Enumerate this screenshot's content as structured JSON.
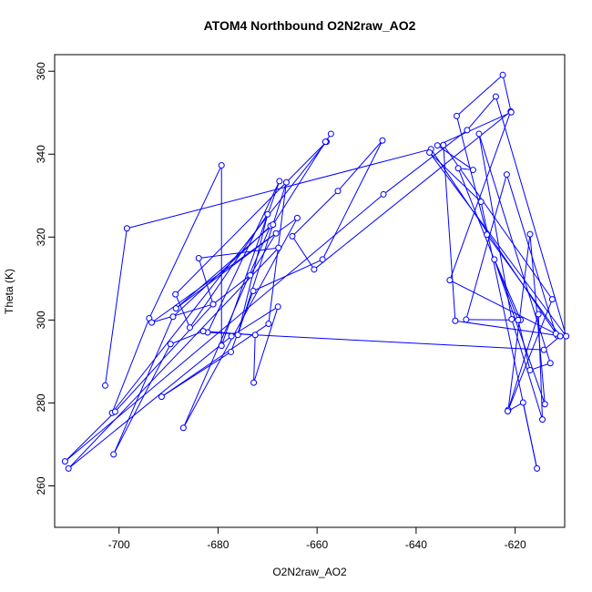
{
  "chart_data": {
    "type": "scatter",
    "mode": "lines+points",
    "title": "ATOM4 Northbound O2N2raw_AO2",
    "xlabel": "O2N2raw_AO2",
    "ylabel": "Theta (K)",
    "xlim": [
      -713,
      -610
    ],
    "ylim": [
      250,
      364
    ],
    "x_ticks": [
      -700,
      -680,
      -660,
      -640,
      -620
    ],
    "y_ticks": [
      260,
      280,
      300,
      320,
      340,
      360
    ],
    "color": "#0000ff",
    "grid": false,
    "series": [
      {
        "points": [
          [
            -702.8,
            284.2
          ],
          [
            -698.4,
            322.1
          ],
          [
            -637.0,
            341.2
          ],
          [
            -611.5,
            296.3
          ],
          [
            -632.1,
            299.8
          ],
          [
            -634.5,
            342.2
          ],
          [
            -612.5,
            305.0
          ],
          [
            -621.4,
            278.3
          ],
          [
            -617.0,
            320.7
          ],
          [
            -614.0,
            279.7
          ],
          [
            -624.2,
            314.6
          ],
          [
            -618.9,
            300.0
          ],
          [
            -629.9,
            300.1
          ],
          [
            -621.7,
            335.1
          ],
          [
            -611.8,
            296.7
          ],
          [
            -633.2,
            309.6
          ],
          [
            -620.9,
            350.3
          ],
          [
            -660.6,
            312.2
          ],
          [
            -665.0,
            320.2
          ],
          [
            -655.8,
            331.1
          ],
          [
            -646.8,
            343.3
          ],
          [
            -658.9,
            314.6
          ],
          [
            -672.9,
            307.0
          ],
          [
            -677.4,
            292.3
          ],
          [
            -691.4,
            281.5
          ],
          [
            -669.8,
            299.1
          ],
          [
            -666.2,
            333.2
          ],
          [
            -676.0,
            296.4
          ],
          [
            -670.0,
            325.5
          ],
          [
            -685.7,
            298.2
          ],
          [
            -688.6,
            306.2
          ],
          [
            -658.1,
            343.0
          ],
          [
            -701.4,
            277.6
          ],
          [
            -693.9,
            300.4
          ],
          [
            -679.3,
            337.3
          ],
          [
            -679.3,
            293.8
          ],
          [
            -667.6,
            333.5
          ],
          [
            -682.1,
            297.0
          ],
          [
            -614.2,
            292.8
          ],
          [
            -610.9,
            296.1
          ],
          [
            -625.7,
            320.6
          ],
          [
            -631.8,
            349.2
          ],
          [
            -622.5,
            359.1
          ],
          [
            -620.8,
            350.1
          ],
          [
            -635.7,
            342.1
          ],
          [
            -628.5,
            336.2
          ],
          [
            -631.5,
            336.6
          ],
          [
            -619.4,
            300.0
          ],
          [
            -617.0,
            287.9
          ],
          [
            -612.9,
            289.6
          ],
          [
            -627.3,
            344.9
          ],
          [
            -620.7,
            300.2
          ],
          [
            -614.5,
            276.0
          ],
          [
            -615.3,
            301.4
          ],
          [
            -621.5,
            278.0
          ],
          [
            -618.4,
            280.1
          ],
          [
            -615.6,
            264.2
          ],
          [
            -626.9,
            328.5
          ],
          [
            -637.3,
            340.4
          ],
          [
            -609.7,
            296.1
          ],
          [
            -623.9,
            353.9
          ],
          [
            -629.7,
            345.8
          ],
          [
            -646.6,
            330.3
          ],
          [
            -710.9,
            265.9
          ],
          [
            -700.8,
            277.9
          ],
          [
            -681.0,
            303.8
          ],
          [
            -683.9,
            314.9
          ],
          [
            -667.8,
            317.4
          ],
          [
            -710.2,
            264.2
          ],
          [
            -677.3,
            296.1
          ],
          [
            -667.9,
            303.2
          ],
          [
            -672.8,
            284.9
          ],
          [
            -672.5,
            296.4
          ],
          [
            -683.0,
            297.3
          ],
          [
            -689.6,
            294.2
          ],
          [
            -701.1,
            267.6
          ],
          [
            -689.1,
            300.8
          ],
          [
            -669.4,
            322.7
          ],
          [
            -687.0,
            274.0
          ],
          [
            -664.0,
            324.6
          ],
          [
            -693.4,
            299.4
          ],
          [
            -681.0,
            303.8
          ],
          [
            -673.5,
            310.8
          ],
          [
            -668.3,
            320.9
          ],
          [
            -688.5,
            302.8
          ],
          [
            -668.9,
            323.0
          ],
          [
            -658.3,
            343.0
          ],
          [
            -657.2,
            344.9
          ]
        ]
      }
    ]
  }
}
